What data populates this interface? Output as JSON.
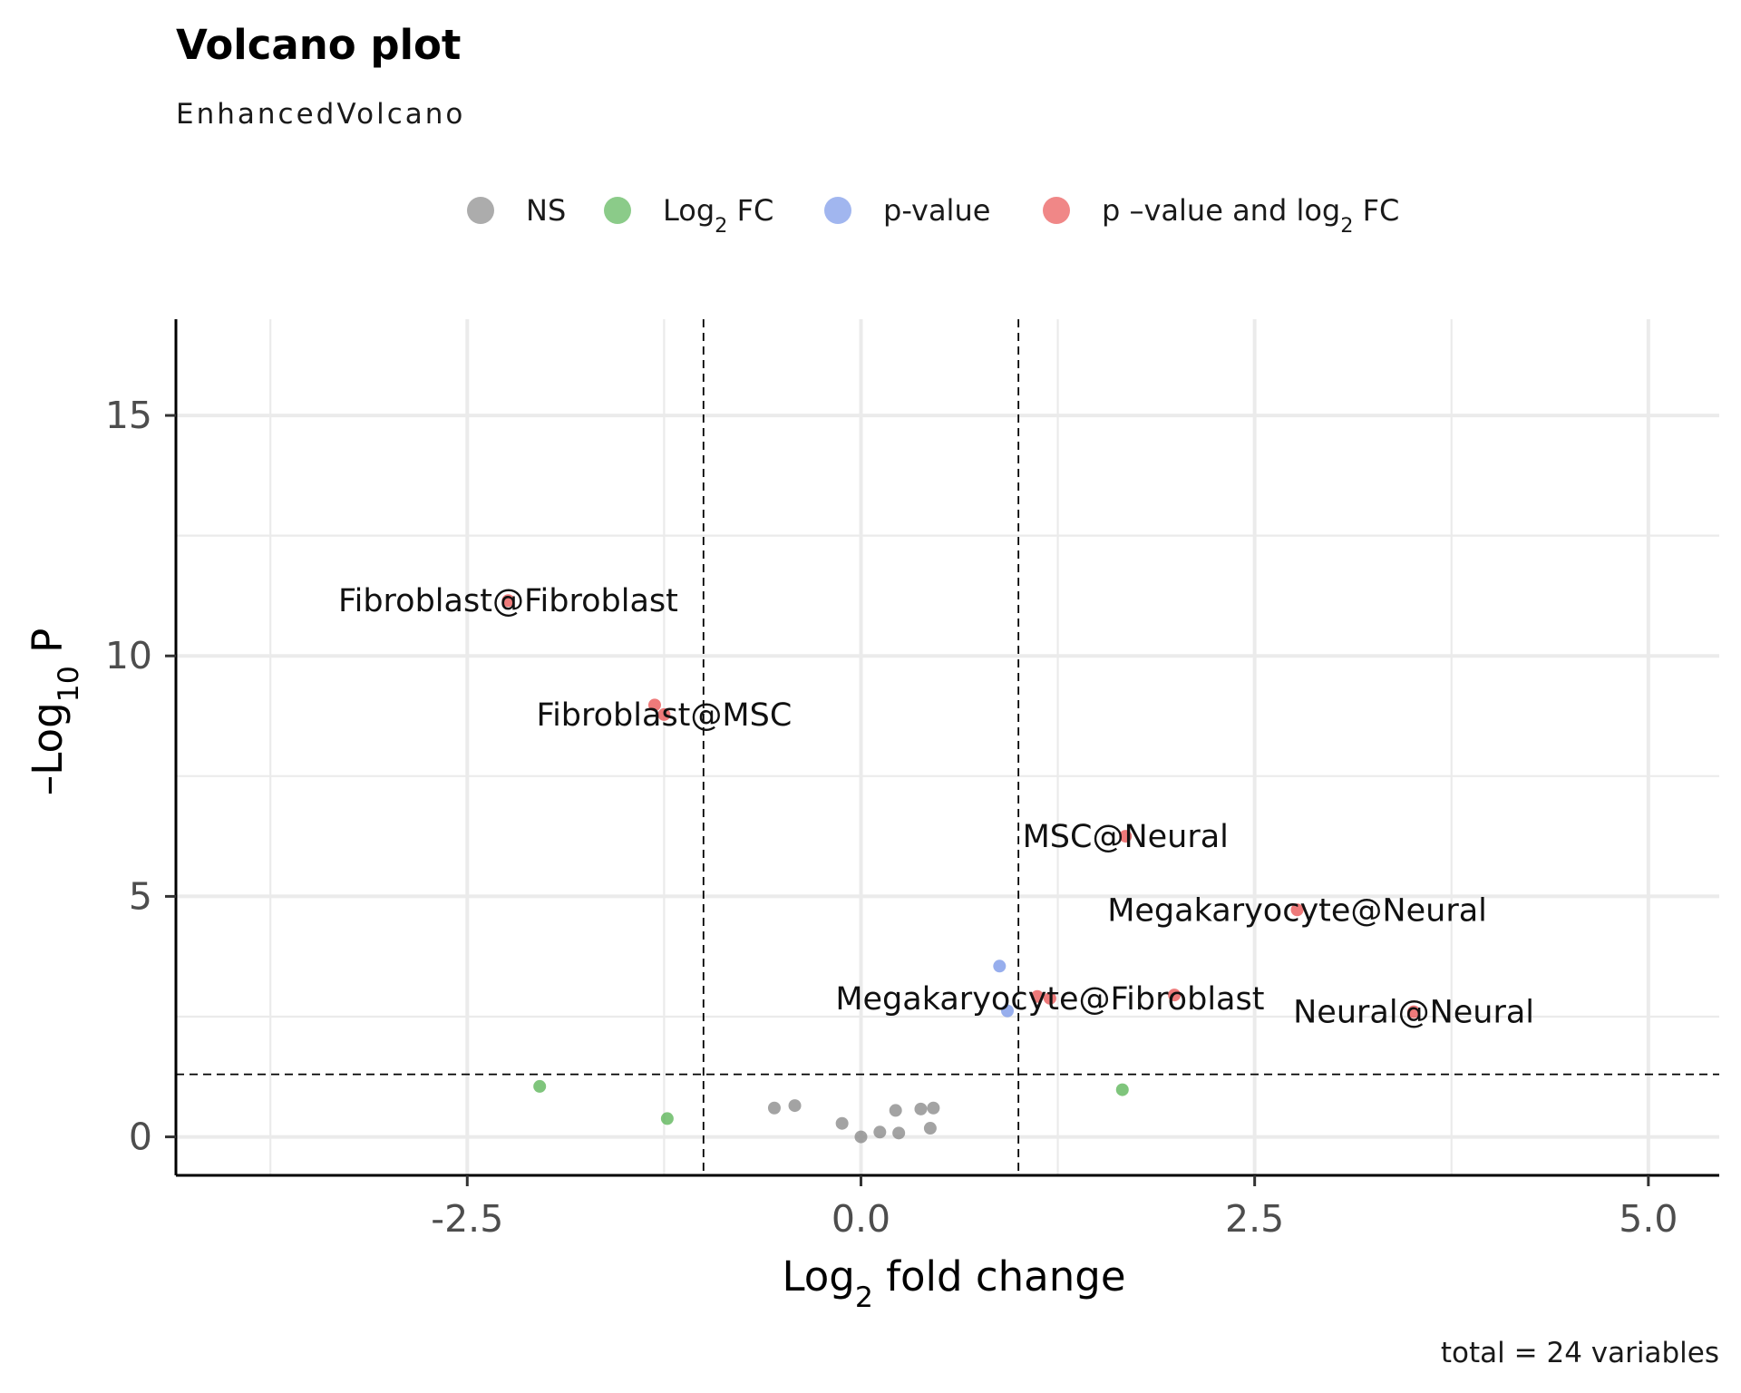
{
  "chart_data": {
    "type": "scatter",
    "title": "Volcano plot",
    "subtitle": "EnhancedVolcano",
    "caption": "total = 24 variables",
    "xlabel": {
      "base": "Log",
      "sub": "2",
      "rest": " fold change"
    },
    "ylabel": {
      "prefix": "–",
      "base": "Log",
      "sub": "10",
      "rest": " P"
    },
    "xlim": [
      -4.35,
      5.45
    ],
    "ylim": [
      -0.8,
      17
    ],
    "x_ticks": [
      -2.5,
      0.0,
      2.5,
      5.0
    ],
    "x_tick_labels": [
      "-2.5",
      "0.0",
      "2.5",
      "5.0"
    ],
    "y_ticks": [
      0,
      5,
      10,
      15
    ],
    "y_tick_labels": [
      "0",
      "5",
      "10",
      "15"
    ],
    "grid": true,
    "legend_position": "top",
    "cutoffs": {
      "fc": [
        -1,
        1
      ],
      "p": 1.3
    },
    "legend": [
      {
        "key": "NS",
        "color": "#808080",
        "parts": [
          {
            "t": "NS"
          }
        ]
      },
      {
        "key": "FC",
        "color": "#4DAF4A",
        "parts": [
          {
            "t": "Log"
          },
          {
            "t": "2",
            "sub": true
          },
          {
            "t": " FC"
          }
        ]
      },
      {
        "key": "P",
        "color": "#6F8FE6",
        "parts": [
          {
            "t": "p-value"
          }
        ]
      },
      {
        "key": "P_FC",
        "color": "#E84646",
        "parts": [
          {
            "t": "p –value and log"
          },
          {
            "t": "2",
            "sub": true
          },
          {
            "t": " FC"
          }
        ]
      }
    ],
    "colors": {
      "NS": "#808080",
      "FC": "#4DAF4A",
      "P": "#6F8FE6",
      "P_FC": "#E84646"
    },
    "series": [
      {
        "key": "NS",
        "points": [
          {
            "x": -0.55,
            "y": 0.6
          },
          {
            "x": -0.42,
            "y": 0.65
          },
          {
            "x": -0.12,
            "y": 0.28
          },
          {
            "x": 0.0,
            "y": 0.0
          },
          {
            "x": 0.12,
            "y": 0.1
          },
          {
            "x": 0.22,
            "y": 0.55
          },
          {
            "x": 0.24,
            "y": 0.08
          },
          {
            "x": 0.38,
            "y": 0.58
          },
          {
            "x": 0.44,
            "y": 0.18
          },
          {
            "x": 0.46,
            "y": 0.6
          }
        ]
      },
      {
        "key": "FC",
        "points": [
          {
            "x": -2.04,
            "y": 1.05
          },
          {
            "x": -1.23,
            "y": 0.38
          },
          {
            "x": 1.66,
            "y": 0.98
          }
        ]
      },
      {
        "key": "P",
        "points": [
          {
            "x": 0.88,
            "y": 3.55
          },
          {
            "x": 0.93,
            "y": 2.62
          }
        ]
      },
      {
        "key": "P_FC",
        "points": [
          {
            "x": -2.24,
            "y": 11.15
          },
          {
            "x": -1.31,
            "y": 8.98
          },
          {
            "x": -1.25,
            "y": 8.78
          },
          {
            "x": 1.12,
            "y": 2.92
          },
          {
            "x": 1.2,
            "y": 2.88
          },
          {
            "x": 1.68,
            "y": 6.25
          },
          {
            "x": 1.99,
            "y": 2.95
          },
          {
            "x": 2.77,
            "y": 4.72
          },
          {
            "x": 3.51,
            "y": 2.6
          }
        ]
      }
    ],
    "annotations": [
      {
        "text": "Fibroblast@Fibroblast",
        "x": -2.24,
        "y": 11.15,
        "anchor": "middle"
      },
      {
        "text": "Fibroblast@MSC",
        "x": -1.25,
        "y": 8.78,
        "anchor": "middle"
      },
      {
        "text": "MSC@Neural",
        "x": 1.68,
        "y": 6.25,
        "anchor": "middle"
      },
      {
        "text": "Megakaryocyte@Neural",
        "x": 2.77,
        "y": 4.72,
        "anchor": "middle"
      },
      {
        "text": "Megakaryocyte@Fibroblast",
        "x": 1.2,
        "y": 2.88,
        "anchor": "middle"
      },
      {
        "text": "Neural@Neural",
        "x": 3.51,
        "y": 2.6,
        "anchor": "middle"
      }
    ]
  }
}
